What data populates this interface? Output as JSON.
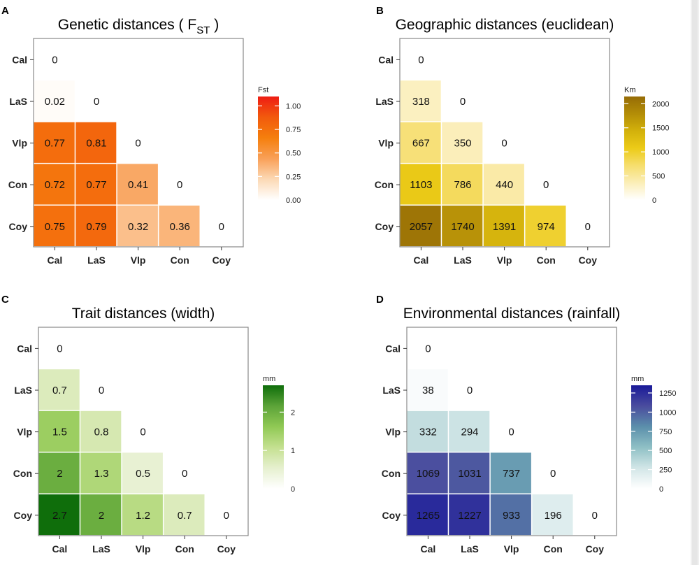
{
  "chart_data": [
    {
      "type": "heatmap",
      "panel_label": "A",
      "title": "Genetic distances ( F",
      "title_subscript": "ST",
      "title_suffix": " )",
      "categories": [
        "Cal",
        "LaS",
        "Vlp",
        "Con",
        "Coy"
      ],
      "rows": [
        "Cal",
        "LaS",
        "Vlp",
        "Con",
        "Coy"
      ],
      "values": [
        [
          0
        ],
        [
          0.02,
          0
        ],
        [
          0.77,
          0.81,
          0
        ],
        [
          0.72,
          0.77,
          0.41,
          0
        ],
        [
          0.75,
          0.79,
          0.32,
          0.36,
          0
        ]
      ],
      "labels": [
        [
          "0"
        ],
        [
          "0.02",
          "0"
        ],
        [
          "0.77",
          "0.81",
          "0"
        ],
        [
          "0.72",
          "0.77",
          "0.41",
          "0"
        ],
        [
          "0.75",
          "0.79",
          "0.32",
          "0.36",
          "0"
        ]
      ],
      "legend_title": "Fst",
      "legend_ticks": [
        "0.00",
        "0.25",
        "0.50",
        "0.75",
        "1.00"
      ],
      "legend_tick_values": [
        0,
        0.25,
        0.5,
        0.75,
        1.0
      ],
      "range": [
        0,
        1.1
      ],
      "colors": [
        "#ffffff",
        "#fcd9b5",
        "#f9a058",
        "#f57f0d",
        "#f25a0d",
        "#ee1d14"
      ]
    },
    {
      "type": "heatmap",
      "panel_label": "B",
      "title": "Geographic distances (euclidean)",
      "title_subscript": "",
      "title_suffix": "",
      "categories": [
        "Cal",
        "LaS",
        "Vlp",
        "Con",
        "Coy"
      ],
      "rows": [
        "Cal",
        "LaS",
        "Vlp",
        "Con",
        "Coy"
      ],
      "values": [
        [
          0
        ],
        [
          318,
          0
        ],
        [
          667,
          350,
          0
        ],
        [
          1103,
          786,
          440,
          0
        ],
        [
          2057,
          1740,
          1391,
          974,
          0
        ]
      ],
      "labels": [
        [
          "0"
        ],
        [
          "318",
          "0"
        ],
        [
          "667",
          "350",
          "0"
        ],
        [
          "1103",
          "786",
          "440",
          "0"
        ],
        [
          "2057",
          "1740",
          "1391",
          "974",
          "0"
        ]
      ],
      "legend_title": "Km",
      "legend_ticks": [
        "0",
        "500",
        "1000",
        "1500",
        "2000"
      ],
      "legend_tick_values": [
        0,
        500,
        1000,
        1500,
        2000
      ],
      "range": [
        0,
        2150
      ],
      "colors": [
        "#ffffff",
        "#fbeeb8",
        "#f6de6e",
        "#eccb18",
        "#d3b10b",
        "#b38d07",
        "#966c06"
      ]
    },
    {
      "type": "heatmap",
      "panel_label": "C",
      "title": "Trait distances (width)",
      "title_subscript": "",
      "title_suffix": "",
      "categories": [
        "Cal",
        "LaS",
        "Vlp",
        "Con",
        "Coy"
      ],
      "rows": [
        "Cal",
        "LaS",
        "Vlp",
        "Con",
        "Coy"
      ],
      "values": [
        [
          0
        ],
        [
          0.7,
          0
        ],
        [
          1.5,
          0.8,
          0
        ],
        [
          2,
          1.3,
          0.5,
          0
        ],
        [
          2.7,
          2,
          1.2,
          0.7,
          0
        ]
      ],
      "labels": [
        [
          "0"
        ],
        [
          "0.7",
          "0"
        ],
        [
          "1.5",
          "0.8",
          "0"
        ],
        [
          "2",
          "1.3",
          "0.5",
          "0"
        ],
        [
          "2.7",
          "2",
          "1.2",
          "0.7",
          "0"
        ]
      ],
      "legend_title": "mm",
      "legend_ticks": [
        "0",
        "1",
        "2"
      ],
      "legend_tick_values": [
        0,
        1,
        2
      ],
      "range": [
        0,
        2.7
      ],
      "colors": [
        "#ffffff",
        "#e6f0cf",
        "#c4e090",
        "#90c954",
        "#5ca338",
        "#0f6e0b"
      ]
    },
    {
      "type": "heatmap",
      "panel_label": "D",
      "title": "Environmental distances (rainfall)",
      "title_subscript": "",
      "title_suffix": "",
      "categories": [
        "Cal",
        "LaS",
        "Vlp",
        "Con",
        "Coy"
      ],
      "rows": [
        "Cal",
        "LaS",
        "Vlp",
        "Con",
        "Coy"
      ],
      "values": [
        [
          0
        ],
        [
          38,
          0
        ],
        [
          332,
          294,
          0
        ],
        [
          1069,
          1031,
          737,
          0
        ],
        [
          1265,
          1227,
          933,
          196,
          0
        ]
      ],
      "labels": [
        [
          "0"
        ],
        [
          "38",
          "0"
        ],
        [
          "332",
          "294",
          "0"
        ],
        [
          "1069",
          "1031",
          "737",
          "0"
        ],
        [
          "1265",
          "1227",
          "933",
          "196",
          "0"
        ]
      ],
      "legend_title": "mm",
      "legend_ticks": [
        "0",
        "250",
        "500",
        "750",
        "1000",
        "1250"
      ],
      "legend_tick_values": [
        0,
        250,
        500,
        750,
        1000,
        1250
      ],
      "range": [
        0,
        1350
      ],
      "colors": [
        "#ffffff",
        "#d2e6e7",
        "#8fc0c5",
        "#5b8fab",
        "#4a4c9e",
        "#1a1a99"
      ]
    }
  ]
}
